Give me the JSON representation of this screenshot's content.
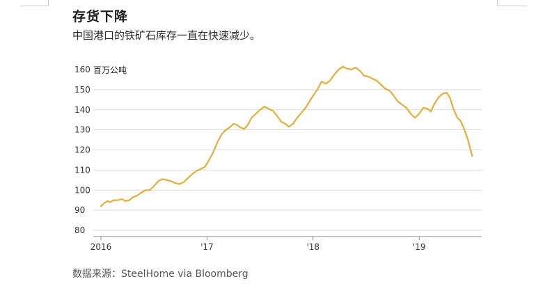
{
  "header": {
    "title": "存货下降",
    "subtitle": "中国港口的铁矿石库存一直在快速减少。"
  },
  "footer": {
    "source": "数据来源：SteelHome via Bloomberg"
  },
  "colors": {
    "line": "#e3ad3c",
    "grid": "#d9d9d9",
    "axis": "#888888"
  },
  "chart_data": {
    "type": "line",
    "title": "存货下降",
    "subtitle": "中国港口的铁矿石库存一直在快速减少。",
    "unit_label": "百万公吨",
    "ylim": [
      80,
      160
    ],
    "yticks": [
      80,
      90,
      100,
      110,
      120,
      130,
      140,
      150,
      160
    ],
    "xlim": [
      2016.0,
      2019.55
    ],
    "xticks": [
      {
        "x": 2016,
        "label": "2016"
      },
      {
        "x": 2017,
        "label": "'17"
      },
      {
        "x": 2018,
        "label": "'18"
      },
      {
        "x": 2019,
        "label": "'19"
      }
    ],
    "grid": true,
    "series": [
      {
        "name": "",
        "points": [
          [
            2016.0,
            92
          ],
          [
            2016.03,
            93.5
          ],
          [
            2016.06,
            94.5
          ],
          [
            2016.09,
            94
          ],
          [
            2016.12,
            95
          ],
          [
            2016.16,
            95
          ],
          [
            2016.2,
            95.5
          ],
          [
            2016.23,
            94.5
          ],
          [
            2016.27,
            95
          ],
          [
            2016.3,
            96.5
          ],
          [
            2016.33,
            97
          ],
          [
            2016.36,
            98
          ],
          [
            2016.39,
            99
          ],
          [
            2016.42,
            100
          ],
          [
            2016.46,
            100
          ],
          [
            2016.5,
            102
          ],
          [
            2016.54,
            104.5
          ],
          [
            2016.58,
            105.5
          ],
          [
            2016.62,
            105
          ],
          [
            2016.66,
            104.5
          ],
          [
            2016.7,
            103.5
          ],
          [
            2016.74,
            103
          ],
          [
            2016.78,
            104
          ],
          [
            2016.82,
            106
          ],
          [
            2016.86,
            108
          ],
          [
            2016.9,
            109.5
          ],
          [
            2016.94,
            110.5
          ],
          [
            2016.98,
            111.5
          ],
          [
            2017.02,
            115
          ],
          [
            2017.06,
            119
          ],
          [
            2017.1,
            124
          ],
          [
            2017.14,
            128
          ],
          [
            2017.18,
            130
          ],
          [
            2017.22,
            131.5
          ],
          [
            2017.25,
            133
          ],
          [
            2017.28,
            132.5
          ],
          [
            2017.32,
            131
          ],
          [
            2017.35,
            130.5
          ],
          [
            2017.38,
            132
          ],
          [
            2017.42,
            136
          ],
          [
            2017.46,
            138
          ],
          [
            2017.5,
            140
          ],
          [
            2017.54,
            141.5
          ],
          [
            2017.58,
            140.5
          ],
          [
            2017.62,
            139.5
          ],
          [
            2017.66,
            137
          ],
          [
            2017.7,
            134
          ],
          [
            2017.74,
            133
          ],
          [
            2017.77,
            131.5
          ],
          [
            2017.81,
            133
          ],
          [
            2017.85,
            136
          ],
          [
            2017.89,
            138.5
          ],
          [
            2017.93,
            141
          ],
          [
            2017.97,
            144.5
          ],
          [
            2018.0,
            147
          ],
          [
            2018.04,
            150
          ],
          [
            2018.08,
            154
          ],
          [
            2018.12,
            153
          ],
          [
            2018.16,
            154.5
          ],
          [
            2018.2,
            157.5
          ],
          [
            2018.24,
            160
          ],
          [
            2018.28,
            161.5
          ],
          [
            2018.32,
            160.5
          ],
          [
            2018.36,
            160
          ],
          [
            2018.4,
            161
          ],
          [
            2018.44,
            159.5
          ],
          [
            2018.48,
            157
          ],
          [
            2018.52,
            156.5
          ],
          [
            2018.56,
            155.5
          ],
          [
            2018.6,
            154.5
          ],
          [
            2018.64,
            152.5
          ],
          [
            2018.68,
            150.5
          ],
          [
            2018.72,
            149.5
          ],
          [
            2018.76,
            147
          ],
          [
            2018.8,
            144
          ],
          [
            2018.84,
            142.5
          ],
          [
            2018.88,
            141
          ],
          [
            2018.92,
            138
          ],
          [
            2018.96,
            136
          ],
          [
            2019.0,
            138
          ],
          [
            2019.04,
            141
          ],
          [
            2019.08,
            140.5
          ],
          [
            2019.11,
            139
          ],
          [
            2019.14,
            142.5
          ],
          [
            2019.18,
            146
          ],
          [
            2019.22,
            148
          ],
          [
            2019.26,
            148.5
          ],
          [
            2019.29,
            146
          ],
          [
            2019.32,
            141
          ],
          [
            2019.36,
            136
          ],
          [
            2019.39,
            134.5
          ],
          [
            2019.42,
            131
          ],
          [
            2019.46,
            125
          ],
          [
            2019.5,
            117
          ]
        ]
      }
    ]
  }
}
